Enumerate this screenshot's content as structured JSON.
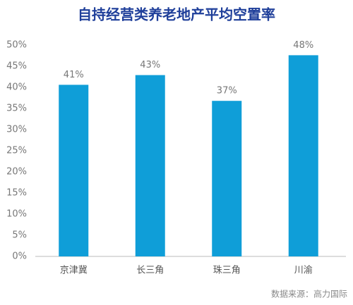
{
  "chart_data": {
    "type": "bar",
    "title": "自持经营类养老地产平均空置率",
    "categories": [
      "京津冀",
      "长三角",
      "珠三角",
      "川渝"
    ],
    "values": [
      40.6,
      42.9,
      36.8,
      47.6
    ],
    "value_labels": [
      "41%",
      "43%",
      "37%",
      "48%"
    ],
    "color": "#0f9ed8",
    "ylim": [
      0,
      50
    ],
    "yticks": [
      {
        "value": 0,
        "label": "0%"
      },
      {
        "value": 5,
        "label": "5%"
      },
      {
        "value": 10,
        "label": "10%"
      },
      {
        "value": 15,
        "label": "15%"
      },
      {
        "value": 20,
        "label": "20%"
      },
      {
        "value": 25,
        "label": "25%"
      },
      {
        "value": 30,
        "label": "30%"
      },
      {
        "value": 35,
        "label": "35%"
      },
      {
        "value": 40,
        "label": "40%"
      },
      {
        "value": 45,
        "label": "45%"
      },
      {
        "value": 50,
        "label": "50%"
      }
    ],
    "grid": false,
    "source": "数据来源：高力国际"
  }
}
